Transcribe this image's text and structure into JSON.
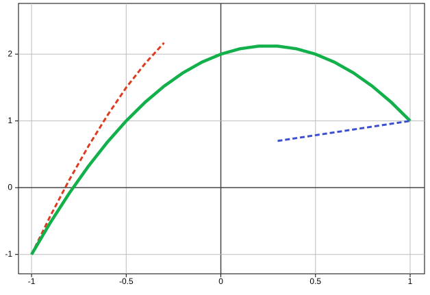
{
  "chart_data": {
    "type": "line",
    "xlim": [
      -1.069,
      1.076
    ],
    "ylim": [
      -1.29,
      2.76
    ],
    "xticks": [
      -1,
      -0.5,
      0,
      0.5,
      1
    ],
    "yticks": [
      -1,
      0,
      1,
      2
    ],
    "grid": true,
    "series": [
      {
        "color": "#dd3b1f",
        "dashed": true,
        "x": [
          -1,
          -0.9,
          -0.8,
          -0.7,
          -0.6,
          -0.5,
          -0.4,
          -0.3
        ],
        "values": [
          -1,
          -0.42,
          0.12,
          0.62,
          1.08,
          1.5,
          1.86,
          2.17
        ]
      },
      {
        "color": "#12b04a",
        "dashed": false,
        "x": [
          -1,
          -0.9,
          -0.8,
          -0.7,
          -0.6,
          -0.5,
          -0.4,
          -0.3,
          -0.2,
          -0.1,
          0,
          0.1,
          0.2,
          0.3,
          0.4,
          0.5,
          0.6,
          0.7,
          0.8,
          0.9,
          1
        ],
        "values": [
          -1,
          -0.52,
          -0.08,
          0.32,
          0.68,
          1,
          1.28,
          1.52,
          1.72,
          1.88,
          2,
          2.08,
          2.12,
          2.12,
          2.08,
          2,
          1.88,
          1.72,
          1.52,
          1.28,
          1
        ]
      },
      {
        "color": "#3b4fd0",
        "dashed": true,
        "x": [
          0.3,
          1
        ],
        "values": [
          0.7,
          1
        ]
      }
    ]
  }
}
